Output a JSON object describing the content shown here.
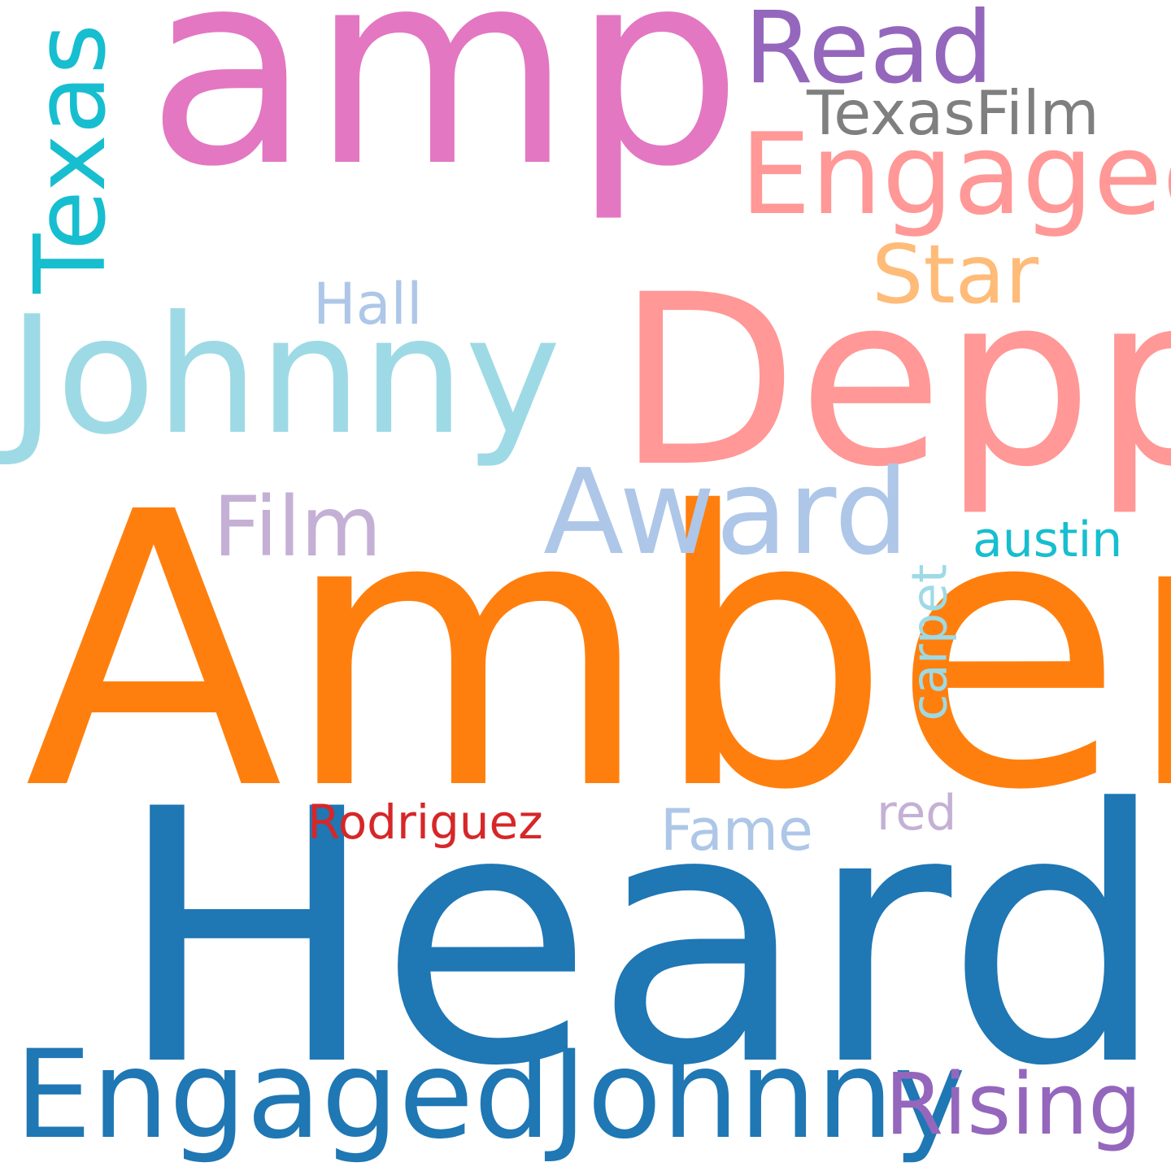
{
  "words": [
    {
      "id": "amp",
      "text": "amp",
      "color": "#e377c2"
    },
    {
      "id": "amber",
      "text": "Amber",
      "color": "#ff7f0e"
    },
    {
      "id": "heard",
      "text": "Heard",
      "color": "#1f77b4"
    },
    {
      "id": "depp",
      "text": "Depp",
      "color": "#ff9896"
    },
    {
      "id": "johnny",
      "text": "Johnny",
      "color": "#9edae5"
    },
    {
      "id": "engaged-johnny",
      "text": "EngagedJohnny",
      "color": "#1f77b4"
    },
    {
      "id": "engaged",
      "text": "Engaged",
      "color": "#ff9896"
    },
    {
      "id": "award",
      "text": "Award",
      "color": "#aec7e8"
    },
    {
      "id": "read",
      "text": "Read",
      "color": "#9467bd"
    },
    {
      "id": "texas",
      "text": "Texas",
      "color": "#17becf"
    },
    {
      "id": "texasfilm",
      "text": "TexasFilm",
      "color": "#7f7f7f"
    },
    {
      "id": "star",
      "text": "Star",
      "color": "#ffbb78"
    },
    {
      "id": "rising",
      "text": "Rising",
      "color": "#9467bd"
    },
    {
      "id": "film",
      "text": "Film",
      "color": "#c5b0d5"
    },
    {
      "id": "hall",
      "text": "Hall",
      "color": "#aec7e8"
    },
    {
      "id": "austin",
      "text": "austin",
      "color": "#17becf"
    },
    {
      "id": "carpet",
      "text": "carpet",
      "color": "#9edae5"
    },
    {
      "id": "rodriguez",
      "text": "Rodriguez",
      "color": "#d62728"
    },
    {
      "id": "fame",
      "text": "Fame",
      "color": "#aec7e8"
    },
    {
      "id": "red",
      "text": "red",
      "color": "#c5b0d5"
    }
  ]
}
